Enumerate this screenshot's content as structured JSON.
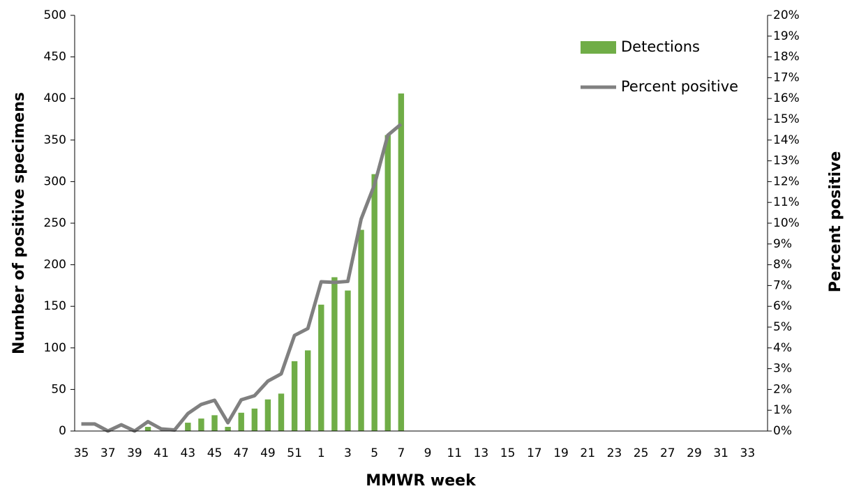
{
  "chart_data": {
    "type": "bar",
    "x_label": "MMWR week",
    "y_label": "Number of positive specimens",
    "y2_label": "Percent positive",
    "categories": [
      "35",
      null,
      "37",
      null,
      "39",
      null,
      "41",
      null,
      "43",
      null,
      "45",
      null,
      "47",
      null,
      "49",
      null,
      "51",
      null,
      "1",
      null,
      "3",
      null,
      "5",
      null,
      "7",
      null,
      "9",
      null,
      "11",
      null,
      "13",
      null,
      "15",
      null,
      "17",
      null,
      "19",
      null,
      "21",
      null,
      "23",
      null,
      "25",
      null,
      "27",
      null,
      "29",
      null,
      "31",
      null,
      "33",
      null
    ],
    "series": [
      {
        "name": "Detections",
        "type": "bar",
        "axis": "y",
        "color": "#70ad47",
        "values": [
          0,
          0,
          0,
          0,
          0,
          5,
          0,
          0,
          10,
          15,
          19,
          5,
          22,
          27,
          38,
          45,
          84,
          97,
          152,
          185,
          169,
          242,
          309,
          356,
          406,
          null,
          null,
          null,
          null,
          null,
          null,
          null,
          null,
          null,
          null,
          null,
          null,
          null,
          null,
          null,
          null,
          null,
          null,
          null,
          null,
          null,
          null,
          null,
          null,
          null,
          null,
          null
        ]
      },
      {
        "name": "Percent positive",
        "type": "line",
        "axis": "y2",
        "color": "#808080",
        "values": [
          0.34,
          0.34,
          0,
          0.3,
          0,
          0.45,
          0.1,
          0.05,
          0.84,
          1.28,
          1.48,
          0.4,
          1.5,
          1.7,
          2.4,
          2.75,
          4.6,
          4.93,
          7.18,
          7.15,
          7.2,
          10.2,
          11.85,
          14.23,
          14.77,
          null,
          null,
          null,
          null,
          null,
          null,
          null,
          null,
          null,
          null,
          null,
          null,
          null,
          null,
          null,
          null,
          null,
          null,
          null,
          null,
          null,
          null,
          null,
          null,
          null,
          null,
          null
        ]
      }
    ],
    "ylim": [
      0,
      500
    ],
    "yticks": [
      0,
      50,
      100,
      150,
      200,
      250,
      300,
      350,
      400,
      450,
      500
    ],
    "y2lim": [
      0,
      20
    ],
    "y2ticks": [
      {
        "value": 0,
        "label": "0%"
      },
      {
        "value": 1,
        "label": "1%"
      },
      {
        "value": 2,
        "label": "2%"
      },
      {
        "value": 3,
        "label": "3%"
      },
      {
        "value": 4,
        "label": "4%"
      },
      {
        "value": 5,
        "label": "5%"
      },
      {
        "value": 6,
        "label": "6%"
      },
      {
        "value": 7,
        "label": "7%"
      },
      {
        "value": 8,
        "label": "8%"
      },
      {
        "value": 9,
        "label": "9%"
      },
      {
        "value": 10,
        "label": "10%"
      },
      {
        "value": 11,
        "label": "11%"
      },
      {
        "value": 12,
        "label": "12%"
      },
      {
        "value": 13,
        "label": "13%"
      },
      {
        "value": 14,
        "label": "14%"
      },
      {
        "value": 15,
        "label": "15%"
      },
      {
        "value": 16,
        "label": "16%"
      },
      {
        "value": 17,
        "label": "17%"
      },
      {
        "value": 18,
        "label": "18%"
      },
      {
        "value": 19,
        "label": "19%"
      },
      {
        "value": 20,
        "label": "20%"
      }
    ],
    "grid": false,
    "legend": "top-right"
  }
}
